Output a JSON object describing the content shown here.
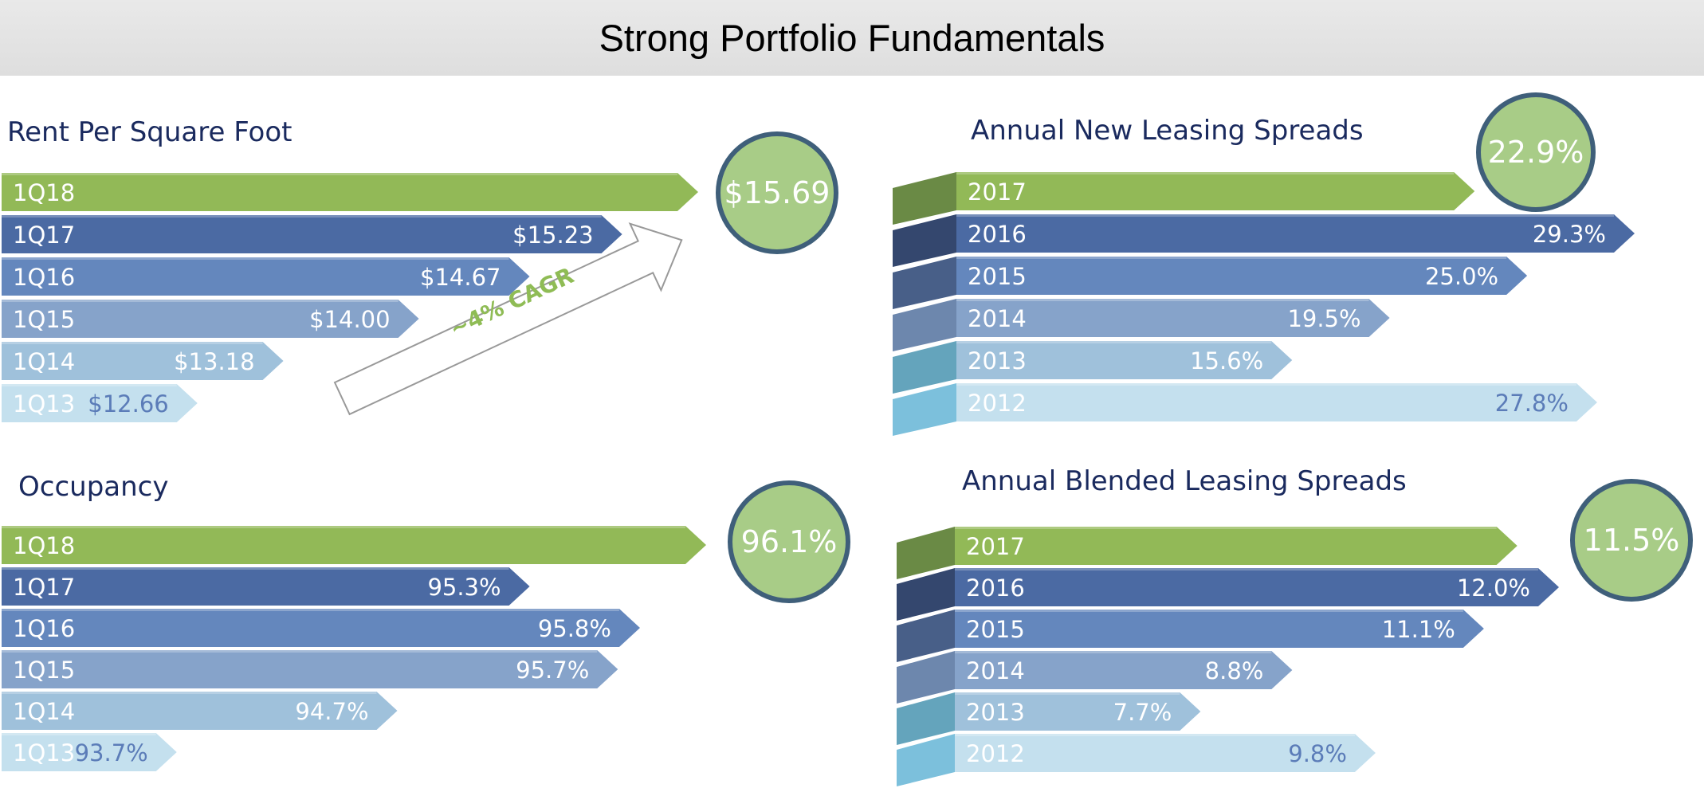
{
  "page_title": "Strong Portfolio Fundamentals",
  "colors": {
    "header_bg": "#e3e3e3",
    "title_text": "#1a2a5e",
    "circle_fill": "#a8cc87",
    "circle_stroke": "#3f5f7a",
    "cagr_text": "#8fbc55"
  },
  "chart_data": [
    {
      "id": "rent",
      "type": "bar",
      "orientation": "horizontal",
      "title": "Rent Per Square Foot",
      "categories": [
        "1Q18",
        "1Q17",
        "1Q16",
        "1Q15",
        "1Q14",
        "1Q13"
      ],
      "values": [
        15.69,
        15.23,
        14.67,
        14.0,
        13.18,
        12.66
      ],
      "labels": [
        "$15.69",
        "$15.23",
        "$14.67",
        "$14.00",
        "$13.18",
        "$12.66"
      ],
      "highlight_index": 0,
      "annotation": "~4% CAGR"
    },
    {
      "id": "new_leasing",
      "type": "bar",
      "orientation": "horizontal",
      "title": "Annual New Leasing Spreads",
      "categories": [
        "2017",
        "2016",
        "2015",
        "2014",
        "2013",
        "2012"
      ],
      "values": [
        22.9,
        29.3,
        25.0,
        19.5,
        15.6,
        27.8
      ],
      "labels": [
        "22.9%",
        "29.3%",
        "25.0%",
        "19.5%",
        "15.6%",
        "27.8%"
      ],
      "highlight_index": 0
    },
    {
      "id": "occupancy",
      "type": "bar",
      "orientation": "horizontal",
      "title": "Occupancy",
      "categories": [
        "1Q18",
        "1Q17",
        "1Q16",
        "1Q15",
        "1Q14",
        "1Q13"
      ],
      "values": [
        96.1,
        95.3,
        95.8,
        95.7,
        94.7,
        93.7
      ],
      "labels": [
        "96.1%",
        "95.3%",
        "95.8%",
        "95.7%",
        "94.7%",
        "93.7%"
      ],
      "highlight_index": 0
    },
    {
      "id": "blended_leasing",
      "type": "bar",
      "orientation": "horizontal",
      "title": "Annual Blended Leasing Spreads",
      "categories": [
        "2017",
        "2016",
        "2015",
        "2014",
        "2013",
        "2012"
      ],
      "values": [
        11.5,
        12.0,
        11.1,
        8.8,
        7.7,
        9.8
      ],
      "labels": [
        "11.5%",
        "12.0%",
        "11.1%",
        "8.8%",
        "7.7%",
        "9.8%"
      ],
      "highlight_index": 0
    }
  ]
}
